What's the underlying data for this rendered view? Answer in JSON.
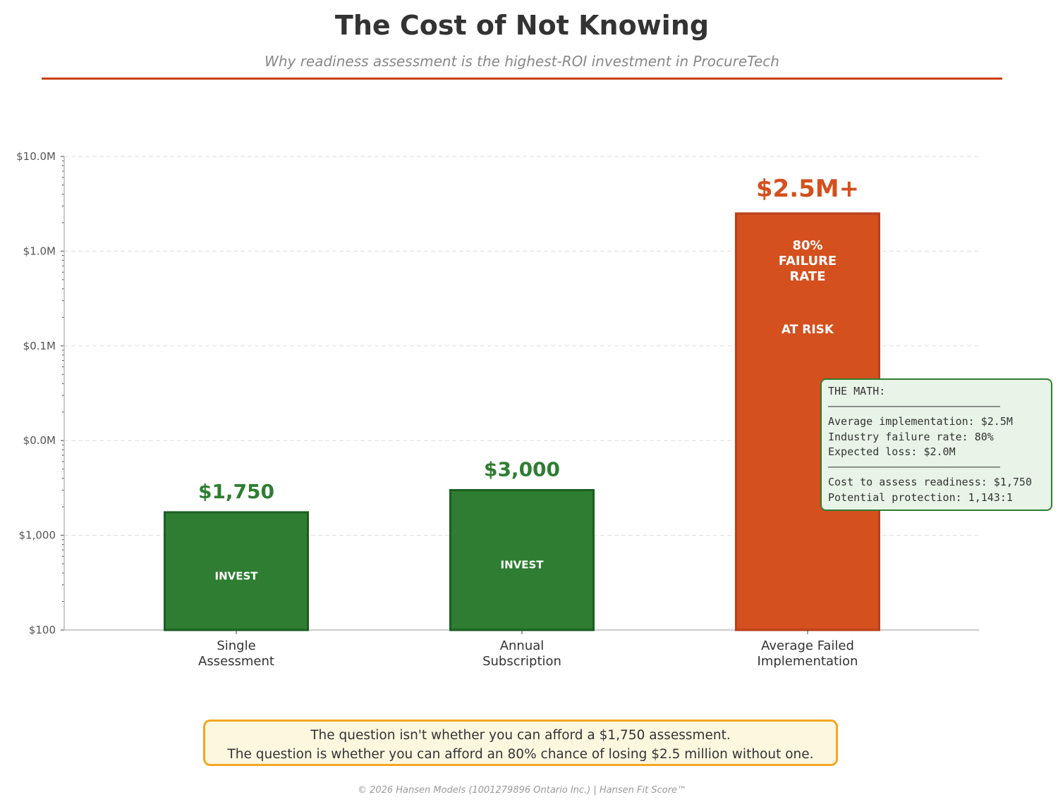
{
  "chart_data": {
    "type": "bar",
    "title": "The Cost of Not Knowing",
    "subtitle": "Why readiness assessment is the highest-ROI investment in ProcureTech",
    "yscale": "log",
    "ylim": [
      100,
      10000000
    ],
    "yticks": [
      100,
      1000,
      10000,
      100000,
      1000000,
      10000000
    ],
    "ytick_labels": [
      "$100",
      "$1,000",
      "$0.0M",
      "$0.1M",
      "$1.0M",
      "$10.0M"
    ],
    "grid": true,
    "categories": [
      "Single\nAssessment",
      "Annual\nSubscription",
      "Average Failed\nImplementation"
    ],
    "values": [
      1750,
      3000,
      2500000
    ],
    "value_labels": [
      "$1,750",
      "$3,000",
      "$2.5M+"
    ],
    "bar_texts": [
      [
        "INVEST"
      ],
      [
        "INVEST"
      ],
      [
        "80%\nFAILURE\nRATE",
        "AT RISK"
      ]
    ],
    "colors": [
      "#2e7d32",
      "#2e7d32",
      "#d4501e"
    ],
    "edge_colors": [
      "#1b5e20",
      "#1b5e20",
      "#b8401a"
    ]
  },
  "math_box": {
    "lines": [
      "THE MATH:",
      "───────────────────────────",
      "Average implementation: $2.5M",
      "Industry failure rate: 80%",
      "Expected loss: $2.0M",
      "───────────────────────────",
      "Cost to assess readiness: $1,750",
      "Potential protection: 1,143:1"
    ]
  },
  "callout": {
    "line1": "The question isn't whether you can afford a $1,750 assessment.",
    "line2": "The question is whether you can afford an 80% chance of losing $2.5 million without one."
  },
  "footer": "© 2026 Hansen Models (1001279896 Ontario Inc.)  |  Hansen Fit Score™"
}
